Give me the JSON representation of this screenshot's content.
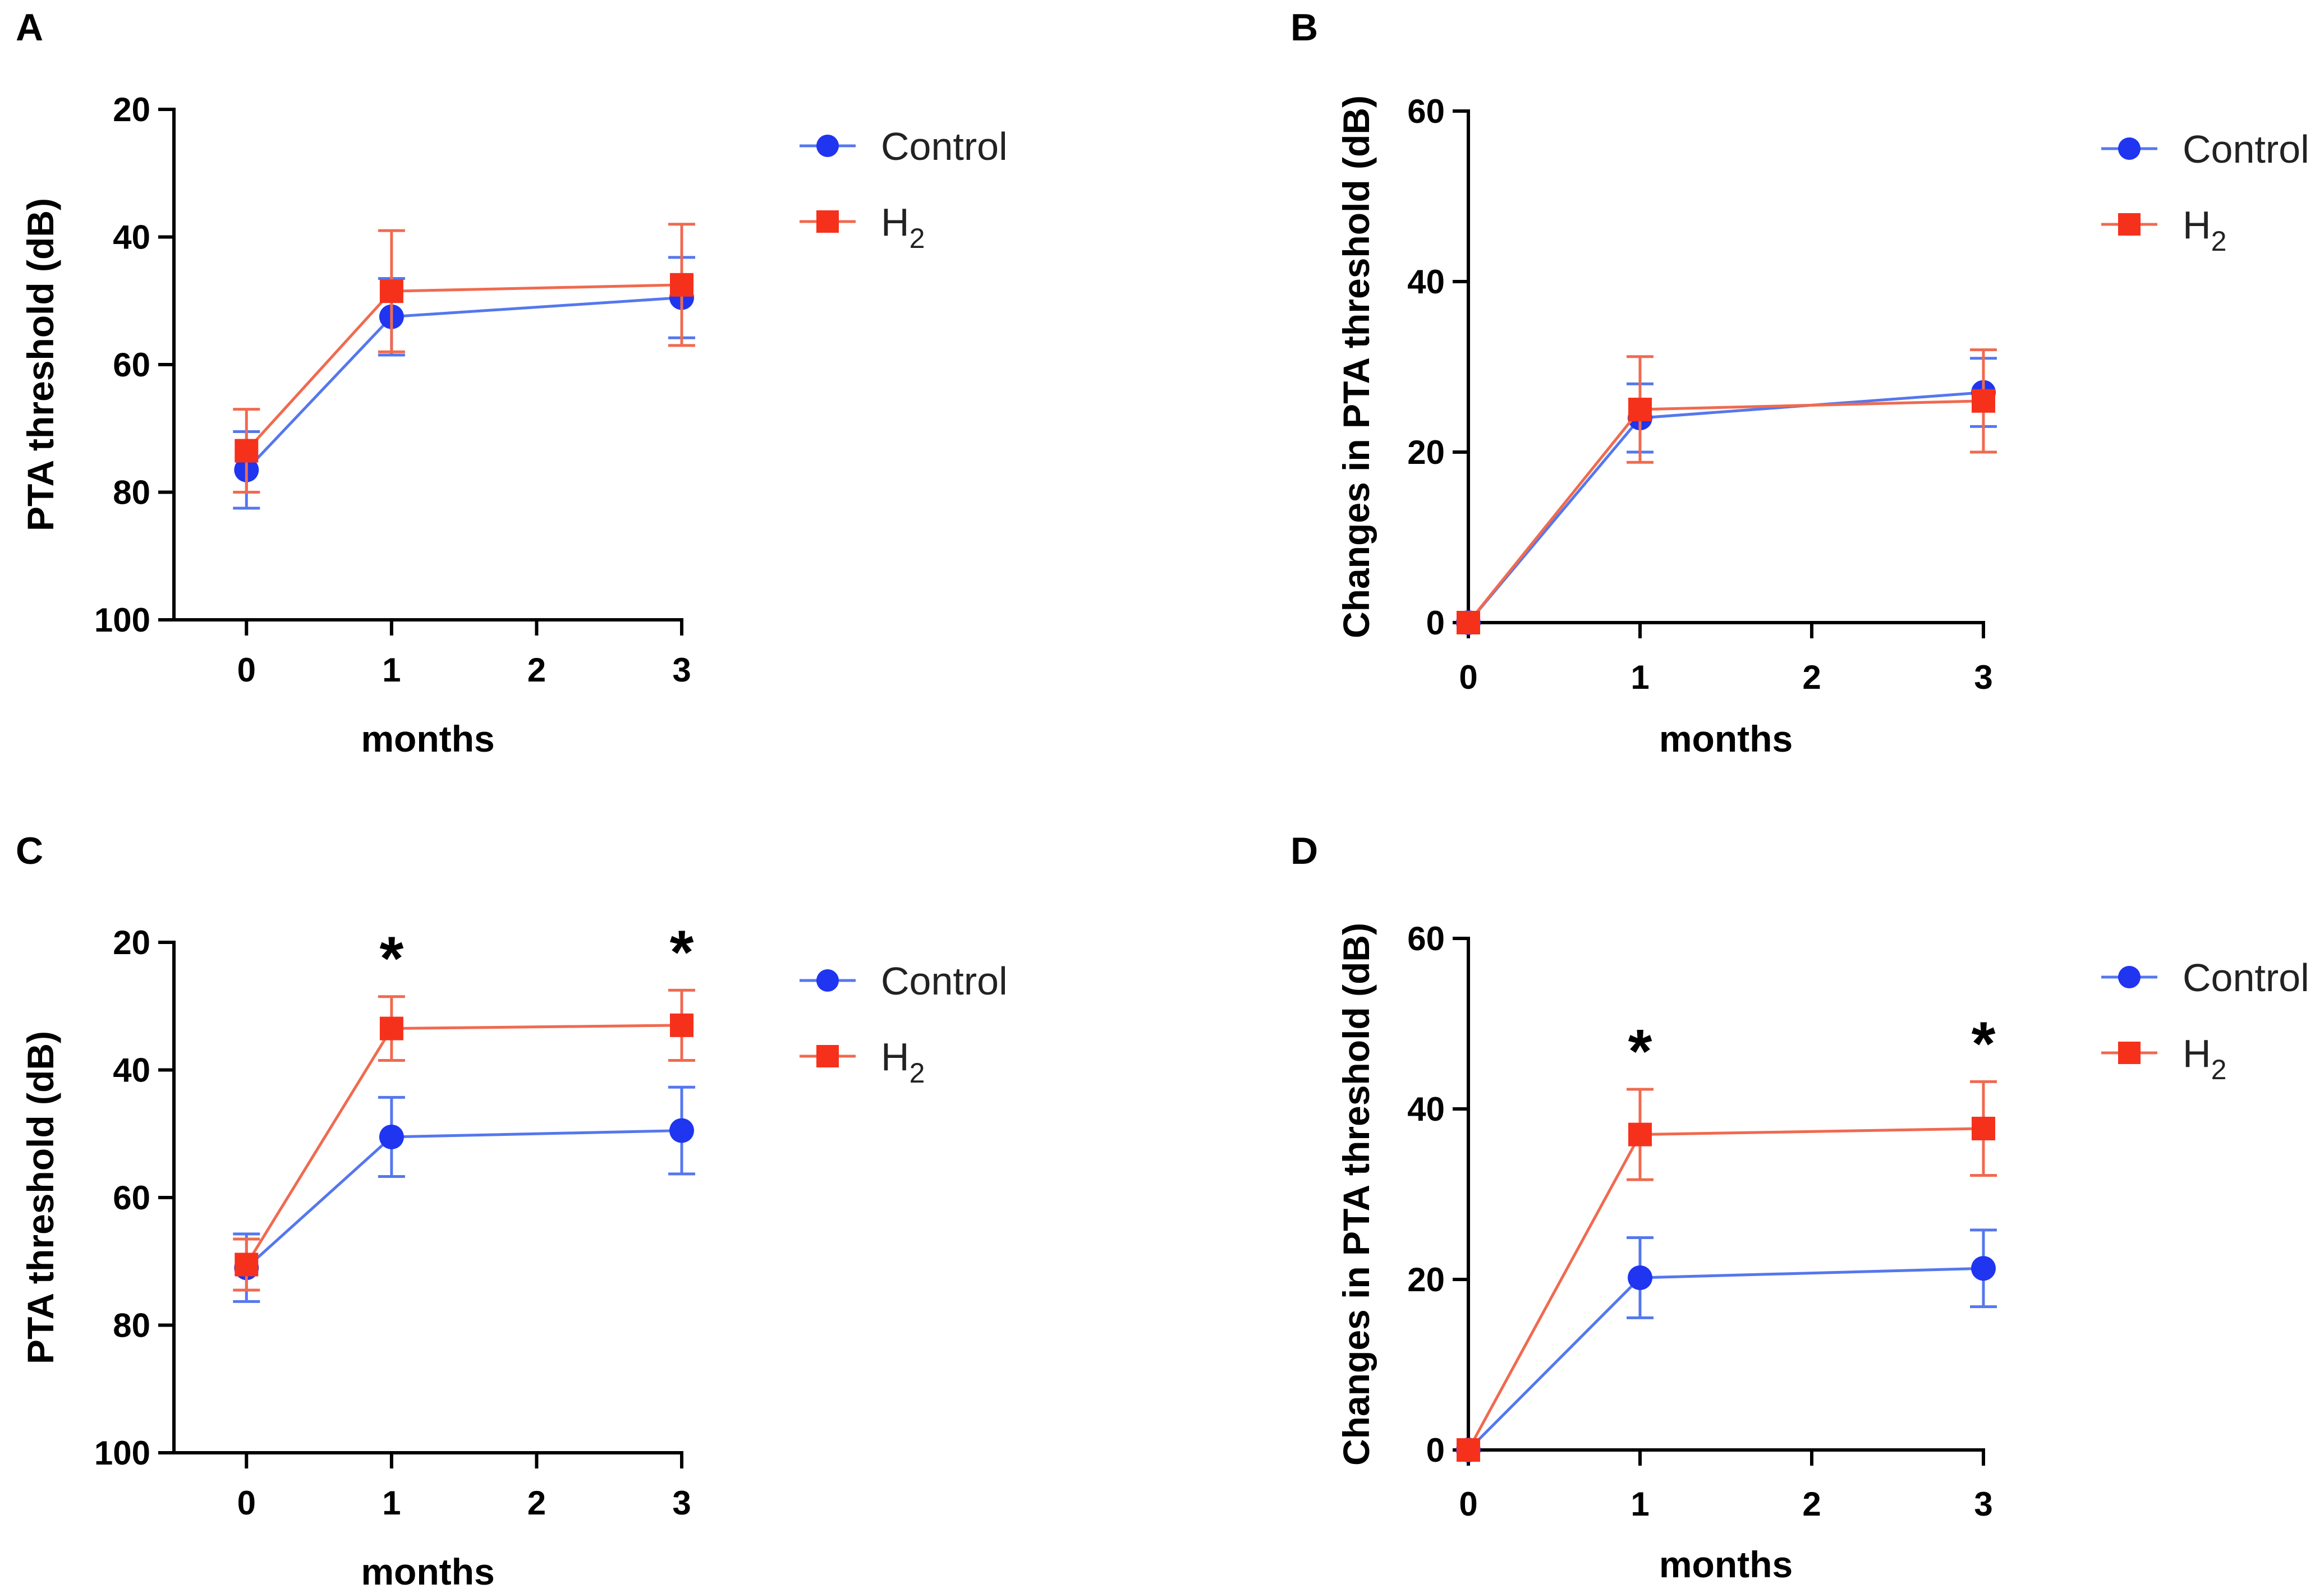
{
  "colors": {
    "control": "#1f35f0",
    "h2": "#f5311c",
    "control_line": "#5577ee",
    "h2_line": "#f06a50",
    "axis": "#000000"
  },
  "legend": {
    "control": "Control",
    "h2_main": "H",
    "h2_sub": "2"
  },
  "chart_data": [
    {
      "panel": "A",
      "type": "line",
      "xlabel": "months",
      "ylabel": "PTA threshold (dB)",
      "xlim": [
        -0.5,
        3
      ],
      "ylim": [
        20,
        100
      ],
      "y_inverted": true,
      "xticks": [
        0,
        1,
        2,
        3
      ],
      "yticks": [
        20,
        40,
        60,
        80,
        100
      ],
      "x": [
        0,
        1,
        3
      ],
      "series": [
        {
          "name": "Control",
          "values": [
            76.5,
            52.5,
            49.5
          ],
          "errors": [
            6,
            6,
            6.3
          ]
        },
        {
          "name": "H2",
          "values": [
            73.5,
            48.5,
            47.5
          ],
          "errors": [
            6.5,
            9.5,
            9.5
          ]
        }
      ],
      "significance": []
    },
    {
      "panel": "B",
      "type": "line",
      "xlabel": "months",
      "ylabel": "Changes in PTA threshold (dB)",
      "xlim": [
        0,
        3
      ],
      "ylim": [
        0,
        60
      ],
      "y_inverted": false,
      "xticks": [
        0,
        1,
        2,
        3
      ],
      "yticks": [
        0,
        20,
        40,
        60
      ],
      "x": [
        0,
        1,
        3
      ],
      "series": [
        {
          "name": "Control",
          "values": [
            0,
            24,
            27
          ],
          "errors": [
            0,
            4,
            4
          ]
        },
        {
          "name": "H2",
          "values": [
            0,
            25,
            26
          ],
          "errors": [
            0,
            6.2,
            6
          ]
        }
      ],
      "significance": []
    },
    {
      "panel": "C",
      "type": "line",
      "xlabel": "months",
      "ylabel": "PTA threshold (dB)",
      "xlim": [
        -0.5,
        3
      ],
      "ylim": [
        20,
        100
      ],
      "y_inverted": true,
      "xticks": [
        0,
        1,
        2,
        3
      ],
      "yticks": [
        20,
        40,
        60,
        80,
        100
      ],
      "x": [
        0,
        1,
        3
      ],
      "series": [
        {
          "name": "Control",
          "values": [
            71,
            50.5,
            49.5
          ],
          "errors": [
            5.3,
            6.2,
            6.8
          ]
        },
        {
          "name": "H2",
          "values": [
            70.5,
            33.5,
            33
          ],
          "errors": [
            4,
            5,
            5.5
          ]
        }
      ],
      "significance": [
        {
          "x": 1,
          "label": "*"
        },
        {
          "x": 3,
          "label": "*"
        }
      ]
    },
    {
      "panel": "D",
      "type": "line",
      "xlabel": "months",
      "ylabel": "Changes in PTA threshold (dB)",
      "xlim": [
        0,
        3
      ],
      "ylim": [
        0,
        60
      ],
      "y_inverted": false,
      "xticks": [
        0,
        1,
        2,
        3
      ],
      "yticks": [
        0,
        20,
        40,
        60
      ],
      "x": [
        0,
        1,
        3
      ],
      "series": [
        {
          "name": "Control",
          "values": [
            0,
            20.2,
            21.3
          ],
          "errors": [
            0,
            4.7,
            4.5
          ]
        },
        {
          "name": "H2",
          "values": [
            0,
            37,
            37.7
          ],
          "errors": [
            0,
            5.3,
            5.5
          ]
        }
      ],
      "significance": [
        {
          "x": 1,
          "label": "*"
        },
        {
          "x": 3,
          "label": "*"
        }
      ]
    }
  ]
}
